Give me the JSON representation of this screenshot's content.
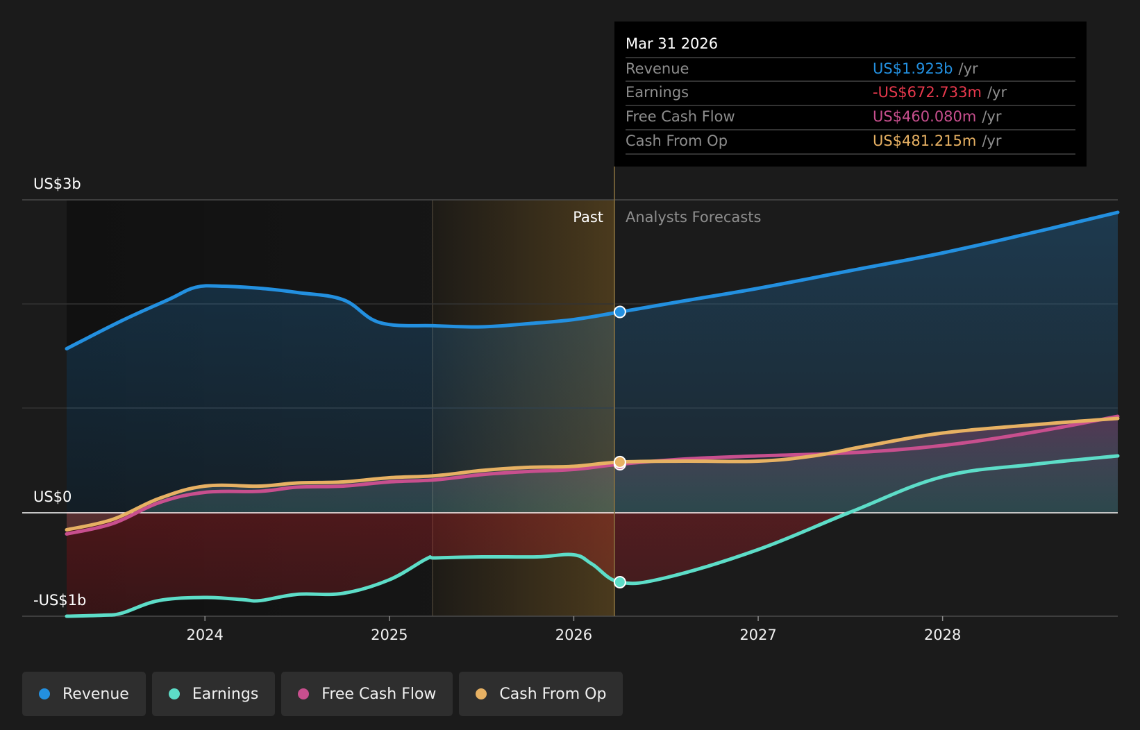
{
  "chart_data": {
    "type": "line",
    "x_ticks": [
      "2024",
      "2025",
      "2026",
      "2027",
      "2028"
    ],
    "y_ticks": [
      "US$3b",
      "US$0",
      "-US$1b"
    ],
    "ylim": [
      -1,
      3
    ],
    "xlim": [
      2023.25,
      2028.95
    ],
    "divider_x": 2026.25,
    "highlight_range": [
      2025.25,
      2026.25
    ],
    "region_labels": {
      "past": "Past",
      "forecast": "Analysts Forecasts"
    },
    "series": [
      {
        "name": "Revenue",
        "color": "#2390e0",
        "unit": "US$b",
        "points": [
          [
            2023.25,
            1.57
          ],
          [
            2023.55,
            1.84
          ],
          [
            2023.8,
            2.04
          ],
          [
            2023.95,
            2.16
          ],
          [
            2024.1,
            2.17
          ],
          [
            2024.3,
            2.15
          ],
          [
            2024.5,
            2.11
          ],
          [
            2024.75,
            2.04
          ],
          [
            2024.95,
            1.82
          ],
          [
            2025.25,
            1.79
          ],
          [
            2025.5,
            1.78
          ],
          [
            2025.75,
            1.81
          ],
          [
            2026.0,
            1.85
          ],
          [
            2026.25,
            1.923
          ],
          [
            2026.6,
            2.03
          ],
          [
            2027.0,
            2.15
          ],
          [
            2027.5,
            2.32
          ],
          [
            2028.0,
            2.49
          ],
          [
            2028.5,
            2.69
          ],
          [
            2028.95,
            2.88
          ]
        ]
      },
      {
        "name": "Earnings",
        "color": "#5dddc8",
        "unit": "US$b",
        "points": [
          [
            2023.25,
            -1.0
          ],
          [
            2023.45,
            -0.99
          ],
          [
            2023.55,
            -0.97
          ],
          [
            2023.75,
            -0.85
          ],
          [
            2024.0,
            -0.82
          ],
          [
            2024.2,
            -0.84
          ],
          [
            2024.3,
            -0.85
          ],
          [
            2024.5,
            -0.79
          ],
          [
            2024.75,
            -0.78
          ],
          [
            2025.0,
            -0.65
          ],
          [
            2025.2,
            -0.45
          ],
          [
            2025.25,
            -0.44
          ],
          [
            2025.5,
            -0.43
          ],
          [
            2025.8,
            -0.43
          ],
          [
            2026.0,
            -0.41
          ],
          [
            2026.1,
            -0.5
          ],
          [
            2026.25,
            -0.673
          ],
          [
            2026.5,
            -0.63
          ],
          [
            2027.0,
            -0.36
          ],
          [
            2027.5,
            0.0
          ],
          [
            2028.0,
            0.34
          ],
          [
            2028.5,
            0.46
          ],
          [
            2028.95,
            0.54
          ]
        ]
      },
      {
        "name": "Free Cash Flow",
        "color": "#c84f8e",
        "unit": "US$b",
        "points": [
          [
            2023.25,
            -0.21
          ],
          [
            2023.5,
            -0.11
          ],
          [
            2023.75,
            0.09
          ],
          [
            2024.0,
            0.19
          ],
          [
            2024.3,
            0.2
          ],
          [
            2024.5,
            0.24
          ],
          [
            2024.75,
            0.25
          ],
          [
            2025.0,
            0.29
          ],
          [
            2025.25,
            0.31
          ],
          [
            2025.5,
            0.36
          ],
          [
            2025.75,
            0.39
          ],
          [
            2026.0,
            0.41
          ],
          [
            2026.25,
            0.46
          ],
          [
            2026.6,
            0.51
          ],
          [
            2027.0,
            0.54
          ],
          [
            2027.5,
            0.57
          ],
          [
            2028.0,
            0.64
          ],
          [
            2028.5,
            0.77
          ],
          [
            2028.95,
            0.92
          ]
        ]
      },
      {
        "name": "Cash From Op",
        "color": "#e7b163",
        "unit": "US$b",
        "points": [
          [
            2023.25,
            -0.17
          ],
          [
            2023.5,
            -0.07
          ],
          [
            2023.75,
            0.13
          ],
          [
            2024.0,
            0.25
          ],
          [
            2024.3,
            0.25
          ],
          [
            2024.5,
            0.28
          ],
          [
            2024.75,
            0.29
          ],
          [
            2025.0,
            0.33
          ],
          [
            2025.25,
            0.35
          ],
          [
            2025.5,
            0.4
          ],
          [
            2025.75,
            0.43
          ],
          [
            2026.0,
            0.44
          ],
          [
            2026.25,
            0.481
          ],
          [
            2026.6,
            0.49
          ],
          [
            2027.0,
            0.49
          ],
          [
            2027.3,
            0.54
          ],
          [
            2027.6,
            0.64
          ],
          [
            2028.0,
            0.76
          ],
          [
            2028.5,
            0.84
          ],
          [
            2028.95,
            0.9
          ]
        ]
      }
    ]
  },
  "tooltip": {
    "date": "Mar 31 2026",
    "rows": [
      {
        "label": "Revenue",
        "value": "US$1.923b",
        "unit": "/yr",
        "color": "#2390e0"
      },
      {
        "label": "Earnings",
        "value": "-US$672.733m",
        "unit": "/yr",
        "color": "#e8394d"
      },
      {
        "label": "Free Cash Flow",
        "value": "US$460.080m",
        "unit": "/yr",
        "color": "#c84f8e"
      },
      {
        "label": "Cash From Op",
        "value": "US$481.215m",
        "unit": "/yr",
        "color": "#e7b163"
      }
    ]
  },
  "legend": [
    {
      "label": "Revenue",
      "color": "#2390e0"
    },
    {
      "label": "Earnings",
      "color": "#5dddc8"
    },
    {
      "label": "Free Cash Flow",
      "color": "#c84f8e"
    },
    {
      "label": "Cash From Op",
      "color": "#e7b163"
    }
  ]
}
